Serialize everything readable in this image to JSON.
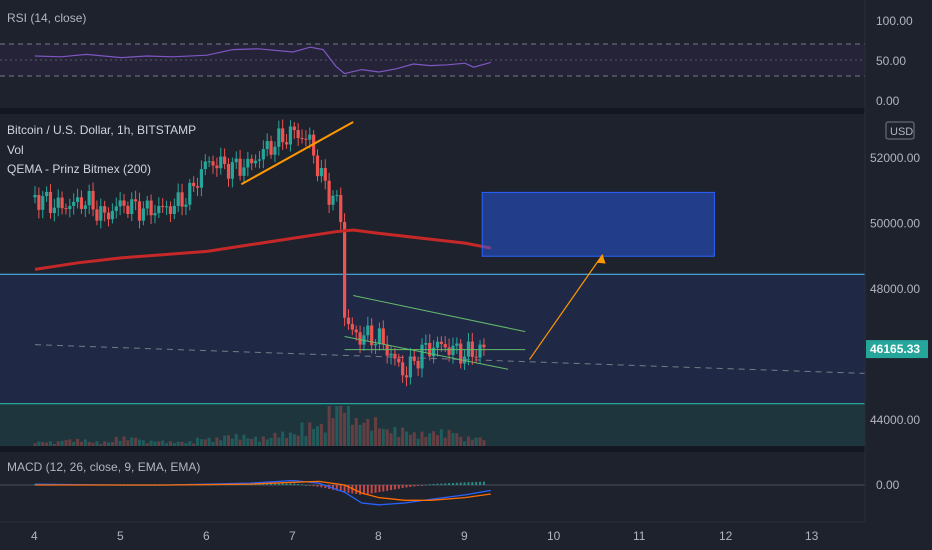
{
  "chart_data": [
    {
      "panel": "rsi",
      "type": "line",
      "title": "RSI (14, close)",
      "ylim": [
        0,
        100
      ],
      "bands": {
        "upper": 70,
        "middle": 50,
        "lower": 30
      },
      "y_ticks": [
        "100.00",
        "50.00",
        "0.00"
      ],
      "colors": {
        "line": "#7e57c2",
        "band_fill": "#2a2540"
      },
      "x": [
        4.0,
        4.3,
        4.6,
        5.0,
        5.3,
        5.6,
        6.0,
        6.3,
        6.6,
        7.0,
        7.2,
        7.35,
        7.5,
        7.6,
        7.8,
        8.0,
        8.2,
        8.4,
        8.6,
        8.8,
        9.0,
        9.1,
        9.3
      ],
      "values": [
        55,
        54,
        57,
        53,
        55,
        54,
        56,
        63,
        64,
        60,
        66,
        63,
        42,
        33,
        38,
        35,
        39,
        45,
        43,
        44,
        46,
        41,
        47
      ]
    },
    {
      "panel": "price",
      "type": "candlestick",
      "title": "Bitcoin / U.S. Dollar, 1h, BITSTAMP",
      "indicators": [
        "Vol",
        "QEMA - Prinz Bitmex (200)"
      ],
      "currency_badge": "USD",
      "ylim": [
        43000,
        54000
      ],
      "y_ticks": [
        "52000.00",
        "50000.00",
        "48000.00",
        "44000.00"
      ],
      "last_price": "46165.33",
      "x_ticks": [
        "4",
        "5",
        "6",
        "7",
        "8",
        "9",
        "10",
        "11",
        "12",
        "13"
      ],
      "colors": {
        "up": "#26a69a",
        "down": "#ef5350",
        "ema": "#c62828",
        "trend": "#ff9800",
        "channel": "#66bb6a",
        "box": "#2962ff",
        "support": "#26a69a",
        "resistance": "#4fc3f7",
        "last_price_bg": "#26a69a"
      },
      "ohlc_hourly_approx": [
        {
          "x": 4.0,
          "y": 50800
        },
        {
          "x": 4.3,
          "y": 50500
        },
        {
          "x": 4.6,
          "y": 50700
        },
        {
          "x": 4.8,
          "y": 50200
        },
        {
          "x": 5.0,
          "y": 50600
        },
        {
          "x": 5.3,
          "y": 50400
        },
        {
          "x": 5.6,
          "y": 50500
        },
        {
          "x": 5.8,
          "y": 50900
        },
        {
          "x": 6.0,
          "y": 51900
        },
        {
          "x": 6.3,
          "y": 51700
        },
        {
          "x": 6.5,
          "y": 51800
        },
        {
          "x": 6.7,
          "y": 52300
        },
        {
          "x": 7.0,
          "y": 52800
        },
        {
          "x": 7.2,
          "y": 52500
        },
        {
          "x": 7.3,
          "y": 51600
        },
        {
          "x": 7.4,
          "y": 51000
        },
        {
          "x": 7.55,
          "y": 50500
        },
        {
          "x": 7.6,
          "y": 47200
        },
        {
          "x": 7.7,
          "y": 46600
        },
        {
          "x": 8.0,
          "y": 46500
        },
        {
          "x": 8.3,
          "y": 45400
        },
        {
          "x": 8.5,
          "y": 46100
        },
        {
          "x": 8.7,
          "y": 46300
        },
        {
          "x": 9.0,
          "y": 46000
        },
        {
          "x": 9.2,
          "y": 46165
        }
      ],
      "qema_200": {
        "x": [
          4.0,
          4.5,
          5.0,
          5.5,
          6.0,
          6.5,
          7.0,
          7.5,
          7.7,
          8.0,
          8.5,
          9.0,
          9.3
        ],
        "values": [
          48600,
          48800,
          48950,
          49050,
          49150,
          49350,
          49550,
          49750,
          49800,
          49700,
          49550,
          49400,
          49250
        ]
      },
      "annotations": {
        "trend_line": {
          "x": [
            6.4,
            7.7
          ],
          "y": [
            51200,
            53100
          ]
        },
        "channel_upper": {
          "x": [
            7.7,
            9.7
          ],
          "y": [
            47800,
            46700
          ]
        },
        "channel_lower": {
          "x": [
            7.6,
            9.5
          ],
          "y": [
            46550,
            45550
          ]
        },
        "horizontal_level": {
          "x": [
            7.6,
            9.7
          ],
          "y": [
            46150,
            46150
          ]
        },
        "target_box": {
          "x": [
            9.2,
            11.9
          ],
          "y": [
            49000,
            50950
          ]
        },
        "projection_arrow": {
          "x": [
            9.75,
            10.6
          ],
          "y": [
            45850,
            49050
          ]
        },
        "resistance_line": 48450,
        "support_line": 44500,
        "last_price_dashed": {
          "x": [
            4.0,
            13.9
          ],
          "y": [
            46300,
            45400
          ]
        }
      },
      "volume_approx": [
        0.1,
        0.15,
        0.1,
        0.2,
        0.12,
        0.1,
        0.18,
        0.25,
        0.2,
        0.3,
        0.5,
        1.0,
        0.6,
        0.4,
        0.3,
        0.35,
        0.2
      ]
    },
    {
      "panel": "macd",
      "type": "line",
      "title": "MACD (12, 26, close, 9, EMA, EMA)",
      "y_ticks": [
        "0.00"
      ],
      "colors": {
        "macd": "#2962ff",
        "signal": "#ff6d00",
        "hist_up": "#26a69a",
        "hist_down": "#ef5350"
      },
      "x": [
        4.0,
        4.5,
        5.0,
        5.5,
        6.0,
        6.5,
        7.0,
        7.3,
        7.6,
        7.8,
        8.0,
        8.3,
        8.6,
        9.0,
        9.3
      ],
      "series": [
        {
          "values": [
            0.05,
            0.02,
            0.0,
            0.0,
            0.05,
            0.1,
            0.25,
            0.1,
            -0.4,
            -1.0,
            -1.1,
            -1.0,
            -0.8,
            -0.55,
            -0.3
          ]
        },
        {
          "values": [
            0.0,
            0.0,
            0.0,
            0.0,
            0.02,
            0.05,
            0.15,
            0.2,
            0.0,
            -0.45,
            -0.7,
            -0.85,
            -0.85,
            -0.7,
            -0.5
          ]
        }
      ]
    }
  ]
}
